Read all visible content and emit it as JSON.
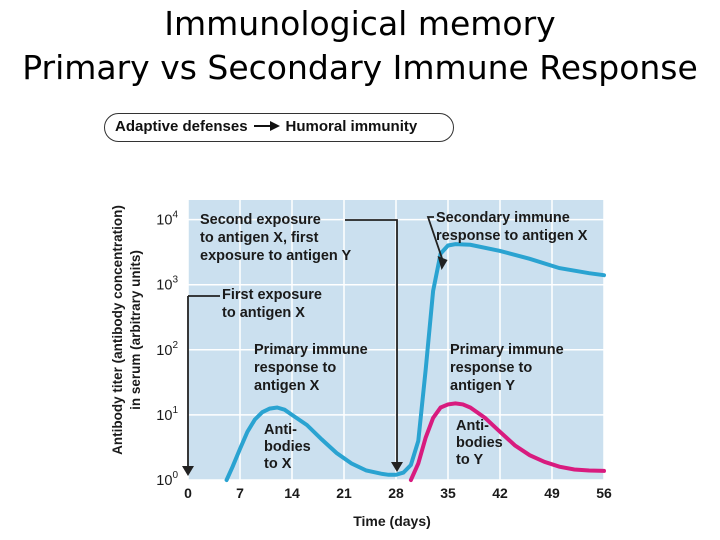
{
  "page": {
    "title_line1": "Immunological memory",
    "title_line2": "Primary vs Secondary Immune Response"
  },
  "pill": {
    "left": "Adaptive defenses",
    "arrow_icon": "right-arrow-icon",
    "right": "Humoral immunity"
  },
  "colors": {
    "plot_bg": "#cbe0ef",
    "grid": "#ffffff",
    "antigen_x": "#2aa3d1",
    "antigen_y": "#d81b7f",
    "text": "#1a1a1a"
  },
  "chart_data": {
    "type": "line",
    "xlabel": "Time (days)",
    "ylabel_line1": "Antibody titer (antibody  concentration)",
    "ylabel_line2": "in serum (arbitrary units)",
    "x_ticks": [
      0,
      7,
      14,
      21,
      28,
      35,
      42,
      49,
      56
    ],
    "xlim": [
      0,
      56
    ],
    "y_scale": "log",
    "y_ticks": [
      {
        "base": "10",
        "exp": "0",
        "value": 1
      },
      {
        "base": "10",
        "exp": "1",
        "value": 10
      },
      {
        "base": "10",
        "exp": "2",
        "value": 100
      },
      {
        "base": "10",
        "exp": "3",
        "value": 1000
      },
      {
        "base": "10",
        "exp": "4",
        "value": 10000
      }
    ],
    "ylim": [
      1,
      20000
    ],
    "grid": true,
    "series": [
      {
        "key": "x",
        "color": "#2aa3d1",
        "points": [
          [
            5.2,
            1
          ],
          [
            6,
            1.6
          ],
          [
            7,
            3
          ],
          [
            8,
            5.5
          ],
          [
            9,
            8.5
          ],
          [
            10,
            11
          ],
          [
            11,
            12.5
          ],
          [
            12,
            13
          ],
          [
            13,
            12
          ],
          [
            14,
            10
          ],
          [
            16,
            7
          ],
          [
            18,
            4.2
          ],
          [
            20,
            2.6
          ],
          [
            22,
            1.8
          ],
          [
            24,
            1.4
          ],
          [
            26,
            1.25
          ],
          [
            27,
            1.2
          ],
          [
            28,
            1.2
          ],
          [
            29,
            1.3
          ],
          [
            30,
            1.7
          ],
          [
            31,
            4
          ],
          [
            32,
            50
          ],
          [
            33,
            800
          ],
          [
            34,
            3000
          ],
          [
            35,
            4000
          ],
          [
            36,
            4200
          ],
          [
            38,
            4100
          ],
          [
            42,
            3300
          ],
          [
            46,
            2500
          ],
          [
            50,
            1800
          ],
          [
            54,
            1500
          ],
          [
            56,
            1400
          ]
        ]
      },
      {
        "key": "y",
        "color": "#d81b7f",
        "points": [
          [
            30,
            1
          ],
          [
            31,
            1.8
          ],
          [
            32,
            4.5
          ],
          [
            33,
            9
          ],
          [
            34,
            13
          ],
          [
            35,
            14.5
          ],
          [
            36,
            15
          ],
          [
            37,
            14.5
          ],
          [
            38,
            13
          ],
          [
            40,
            9
          ],
          [
            42,
            5.5
          ],
          [
            44,
            3.4
          ],
          [
            46,
            2.4
          ],
          [
            48,
            1.9
          ],
          [
            50,
            1.6
          ],
          [
            52,
            1.45
          ],
          [
            54,
            1.4
          ],
          [
            56,
            1.38
          ]
        ]
      }
    ],
    "annotations": {
      "second_exposure": [
        "Second exposure",
        "to antigen X, first",
        "exposure to antigen Y"
      ],
      "secondary_response": [
        "Secondary immune",
        "response to antigen X"
      ],
      "first_exposure": [
        "First exposure",
        "to antigen X"
      ],
      "primary_x": [
        "Primary immune",
        "response to",
        "antigen X"
      ],
      "primary_y": [
        "Primary immune",
        "response to",
        "antigen Y"
      ],
      "antibodies_x": [
        "Anti-",
        "bodies",
        "to X"
      ],
      "antibodies_y": [
        "Anti-",
        "bodies",
        "to Y"
      ]
    }
  }
}
